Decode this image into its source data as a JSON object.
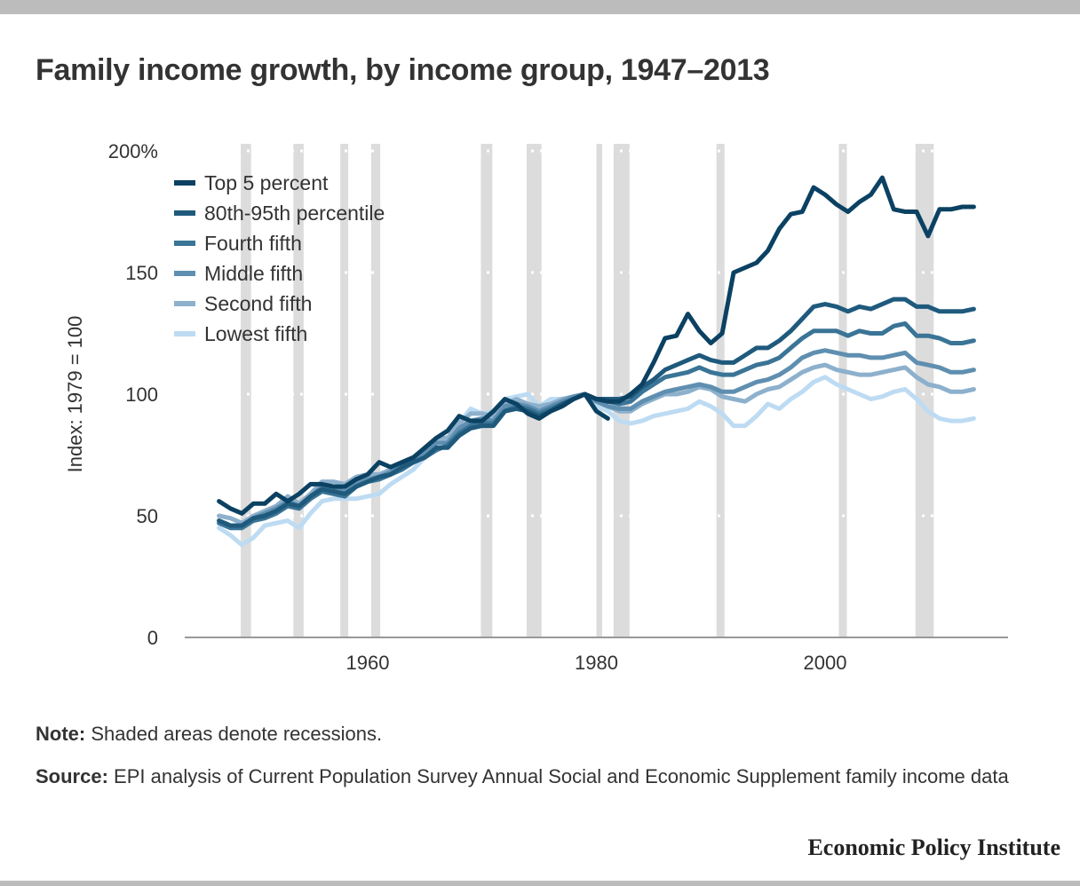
{
  "title": "Family income growth, by income group, 1947–2013",
  "note": {
    "label": "Note:",
    "text": "Shaded areas denote recessions."
  },
  "source": {
    "label": "Source:",
    "text": "EPI analysis of Current Population Survey Annual Social and Economic Supplement family income data"
  },
  "brand": "Economic Policy Institute",
  "chart_data": {
    "type": "line",
    "title": "Family income growth, by income group, 1947–2013",
    "ylabel": "Index: 1979 = 100",
    "xlabel": "",
    "xlim": [
      1944,
      2016
    ],
    "ylim": [
      0,
      200
    ],
    "yticks": [
      0,
      50,
      100,
      150,
      200
    ],
    "ytick_labels": [
      "0",
      "50",
      "100",
      "150",
      "200%"
    ],
    "xticks": [
      1960,
      1980,
      2000
    ],
    "xtick_labels": [
      "1960",
      "1980",
      "2000"
    ],
    "grid": "dotted horizontal",
    "legend_position": "top-left",
    "recessions": [
      [
        1948.9,
        1949.8
      ],
      [
        1953.5,
        1954.4
      ],
      [
        1957.6,
        1958.3
      ],
      [
        1960.3,
        1961.1
      ],
      [
        1969.9,
        1970.9
      ],
      [
        1973.9,
        1975.2
      ],
      [
        1980.0,
        1980.5
      ],
      [
        1981.5,
        1982.9
      ],
      [
        1990.5,
        1991.2
      ],
      [
        2001.2,
        2001.9
      ],
      [
        2007.9,
        2009.5
      ]
    ],
    "recession_color": "#dcdcdc",
    "x": [
      1947,
      1948,
      1949,
      1950,
      1951,
      1952,
      1953,
      1954,
      1955,
      1956,
      1957,
      1958,
      1959,
      1960,
      1961,
      1962,
      1963,
      1964,
      1965,
      1966,
      1967,
      1968,
      1969,
      1970,
      1971,
      1972,
      1973,
      1974,
      1975,
      1976,
      1977,
      1978,
      1979,
      1980,
      1981,
      1982,
      1983,
      1984,
      1985,
      1986,
      1987,
      1988,
      1989,
      1990,
      1991,
      1992,
      1993,
      1994,
      1995,
      1996,
      1997,
      1998,
      1999,
      2000,
      2001,
      2002,
      2003,
      2004,
      2005,
      2006,
      2007,
      2008,
      2009,
      2010,
      2011,
      2012,
      2013
    ],
    "series": [
      {
        "name": "Top 5 percent",
        "color": "#0b4162",
        "values": [
          56,
          53,
          51,
          55,
          55,
          59,
          56,
          59,
          63,
          63,
          62,
          62,
          65,
          67,
          72,
          70,
          72,
          74,
          78,
          82,
          85,
          91,
          89,
          89,
          93,
          98,
          96,
          92,
          90,
          93,
          95,
          98,
          100,
          93,
          90,
          null,
          null,
          null,
          null,
          null,
          null,
          null,
          null,
          null,
          null,
          null,
          null,
          null,
          null,
          null,
          null,
          null,
          null,
          null,
          null,
          null,
          null,
          null,
          null,
          null,
          null,
          null,
          null,
          null,
          null,
          null,
          null
        ],
        "values_b": [
          null,
          null,
          null,
          null,
          null,
          null,
          null,
          null,
          null,
          null,
          null,
          null,
          null,
          null,
          null,
          null,
          null,
          null,
          null,
          null,
          null,
          null,
          null,
          null,
          null,
          null,
          null,
          null,
          null,
          null,
          null,
          null,
          100,
          98,
          97,
          97,
          100,
          104,
          113,
          123,
          124,
          133,
          126,
          121,
          125,
          150,
          152,
          154,
          159,
          168,
          174,
          175,
          185,
          182,
          178,
          175,
          179,
          182,
          189,
          176,
          175,
          175,
          165,
          176,
          176,
          177,
          177
        ]
      },
      {
        "name": "80th-95th percentile",
        "color": "#1f5a7d",
        "values": [
          48,
          46,
          46,
          49,
          50,
          52,
          55,
          54,
          58,
          61,
          60,
          59,
          62,
          64,
          66,
          67,
          70,
          72,
          74,
          78,
          78,
          83,
          86,
          87,
          87,
          93,
          94,
          93,
          91,
          93,
          96,
          98,
          100,
          98,
          98,
          98,
          99,
          103,
          106,
          110,
          112,
          114,
          116,
          114,
          113,
          113,
          116,
          119,
          119,
          122,
          126,
          131,
          136,
          137,
          136,
          134,
          136,
          135,
          137,
          139,
          139,
          136,
          136,
          134,
          134,
          134,
          135
        ]
      },
      {
        "name": "Fourth fifth",
        "color": "#3a7496",
        "values": [
          47,
          45,
          45,
          48,
          49,
          51,
          54,
          53,
          57,
          60,
          59,
          58,
          62,
          64,
          65,
          67,
          69,
          72,
          74,
          77,
          79,
          84,
          87,
          88,
          88,
          93,
          95,
          94,
          92,
          94,
          96,
          98,
          100,
          98,
          97,
          96,
          97,
          101,
          104,
          107,
          108,
          109,
          111,
          109,
          108,
          108,
          110,
          112,
          113,
          115,
          119,
          123,
          126,
          126,
          126,
          124,
          126,
          125,
          125,
          128,
          129,
          124,
          124,
          123,
          121,
          121,
          122
        ]
      },
      {
        "name": "Middle fifth",
        "color": "#5f8fb0",
        "values": [
          48,
          46,
          46,
          49,
          51,
          53,
          56,
          54,
          58,
          62,
          61,
          60,
          63,
          65,
          66,
          68,
          71,
          73,
          76,
          80,
          80,
          86,
          89,
          90,
          89,
          95,
          96,
          95,
          93,
          95,
          97,
          99,
          100,
          97,
          95,
          94,
          94,
          97,
          99,
          101,
          102,
          103,
          104,
          103,
          101,
          101,
          103,
          105,
          106,
          108,
          111,
          115,
          117,
          118,
          117,
          116,
          116,
          115,
          115,
          116,
          117,
          113,
          112,
          111,
          109,
          109,
          110
        ]
      },
      {
        "name": "Second fifth",
        "color": "#8db0cc",
        "values": [
          50,
          49,
          47,
          50,
          52,
          54,
          58,
          55,
          59,
          64,
          64,
          63,
          66,
          67,
          67,
          69,
          72,
          74,
          77,
          82,
          82,
          88,
          92,
          92,
          91,
          96,
          98,
          96,
          95,
          96,
          98,
          99,
          100,
          97,
          95,
          93,
          93,
          96,
          98,
          100,
          100,
          101,
          103,
          102,
          99,
          98,
          97,
          100,
          102,
          103,
          106,
          109,
          111,
          112,
          110,
          109,
          108,
          108,
          109,
          110,
          111,
          107,
          104,
          103,
          101,
          101,
          102
        ]
      },
      {
        "name": "Lowest fifth",
        "color": "#bddbf2",
        "values": [
          45,
          42,
          38,
          41,
          46,
          47,
          48,
          45,
          51,
          56,
          57,
          57,
          57,
          58,
          59,
          63,
          66,
          69,
          74,
          80,
          82,
          88,
          94,
          92,
          93,
          98,
          99,
          100,
          95,
          98,
          98,
          98,
          100,
          95,
          93,
          89,
          88,
          89,
          91,
          92,
          93,
          94,
          97,
          95,
          92,
          87,
          87,
          91,
          96,
          94,
          98,
          101,
          105,
          107,
          104,
          102,
          100,
          98,
          99,
          101,
          102,
          98,
          93,
          90,
          89,
          89,
          90
        ]
      }
    ]
  }
}
